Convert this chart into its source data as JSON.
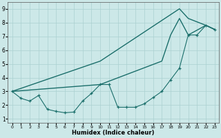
{
  "xlabel": "Humidex (Indice chaleur)",
  "bg_color": "#cce8e8",
  "line_color": "#1a6e6a",
  "xlim": [
    -0.5,
    23.5
  ],
  "ylim": [
    0.7,
    9.5
  ],
  "xticks": [
    0,
    1,
    2,
    3,
    4,
    5,
    6,
    7,
    8,
    9,
    10,
    11,
    12,
    13,
    14,
    15,
    16,
    17,
    18,
    19,
    20,
    21,
    22,
    23
  ],
  "yticks": [
    1,
    2,
    3,
    4,
    5,
    6,
    7,
    8,
    9
  ],
  "line_detail": {
    "x": [
      0,
      1,
      2,
      3,
      4,
      5,
      6,
      7,
      8,
      9,
      10,
      11,
      12,
      13,
      14,
      15,
      16,
      17,
      18,
      19,
      20,
      21,
      22,
      23
    ],
    "y": [
      3.0,
      2.5,
      2.3,
      2.7,
      1.7,
      1.55,
      1.45,
      1.5,
      2.3,
      2.85,
      3.5,
      3.5,
      1.85,
      1.85,
      1.85,
      2.1,
      2.55,
      3.0,
      3.85,
      4.7,
      7.1,
      7.1,
      7.8,
      7.5
    ]
  },
  "line_upper": {
    "x": [
      0,
      10,
      19,
      20,
      22,
      23
    ],
    "y": [
      3.0,
      5.2,
      9.0,
      8.3,
      7.8,
      7.5
    ]
  },
  "line_lower": {
    "x": [
      0,
      10,
      17,
      18,
      19,
      20,
      22,
      23
    ],
    "y": [
      3.0,
      3.5,
      5.2,
      7.1,
      8.3,
      7.1,
      7.8,
      7.5
    ]
  }
}
